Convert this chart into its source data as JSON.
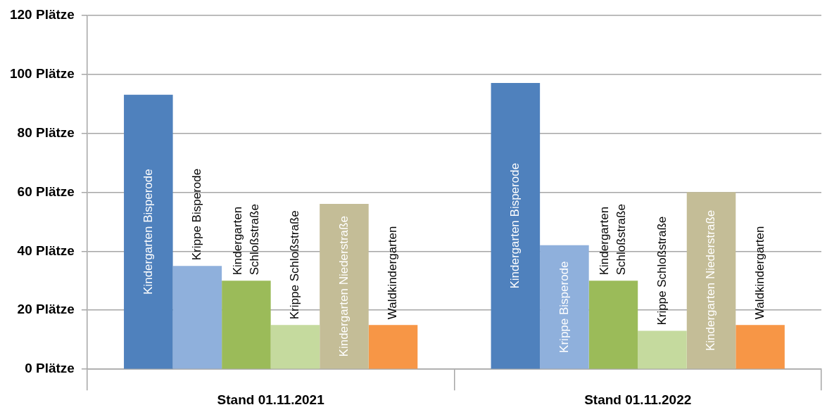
{
  "chart_data": {
    "type": "bar",
    "categories": [
      "Stand 01.11.2021",
      "Stand 01.11.2022"
    ],
    "series": [
      {
        "name": "Kindergarten Bisperode",
        "color": "#4f81bd",
        "values": [
          93,
          97
        ]
      },
      {
        "name": "Krippe Bisperode",
        "color": "#8fb0dc",
        "values": [
          35,
          42
        ]
      },
      {
        "name": "Kindergarten Schloßstraße",
        "color": "#9bbb59",
        "values": [
          30,
          30
        ]
      },
      {
        "name": "Krippe Schloßstraße",
        "color": "#c5da9e",
        "values": [
          15,
          13
        ]
      },
      {
        "name": "Kindergarten Niederstraße",
        "color": "#c4bd97",
        "values": [
          56,
          60
        ]
      },
      {
        "name": "Waldkindergarten",
        "color": "#f79646",
        "values": [
          15,
          15
        ]
      }
    ],
    "ylim": [
      0,
      120
    ],
    "yticks": [
      {
        "value": 0,
        "label": "0 Plätze"
      },
      {
        "value": 20,
        "label": "20 Plätze"
      },
      {
        "value": 40,
        "label": "40 Plätze"
      },
      {
        "value": 60,
        "label": "60 Plätze"
      },
      {
        "value": 80,
        "label": "80 Plätze"
      },
      {
        "value": 100,
        "label": "100 Plätze"
      },
      {
        "value": 120,
        "label": "120 Plätze"
      }
    ],
    "grid": "y",
    "legend": false
  }
}
